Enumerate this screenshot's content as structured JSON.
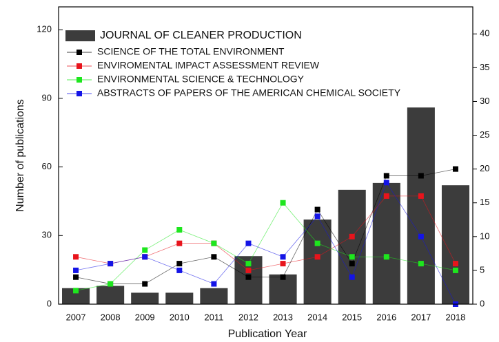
{
  "chart_data": {
    "type": "bar",
    "xlabel": "Publication Year",
    "ylabel": "Number of publications",
    "categories": [
      "2007",
      "2008",
      "2009",
      "2010",
      "2011",
      "2012",
      "2013",
      "2014",
      "2015",
      "2016",
      "2017",
      "2018"
    ],
    "series": [
      {
        "name": "JOURNAL OF CLEANER PRODUCTION",
        "type": "bar",
        "color": "#3c3c3c",
        "values": [
          7,
          8,
          5,
          5,
          7,
          21,
          13,
          37,
          50,
          53,
          86,
          52
        ]
      },
      {
        "name": "SCIENCE OF THE TOTAL ENVIRONMENT",
        "type": "line",
        "axis": "y2",
        "color": "#000000",
        "values": [
          4,
          3,
          3,
          6,
          7,
          4,
          4,
          14,
          6,
          19,
          19,
          20
        ]
      },
      {
        "name": "ENVIROMENTAL IMPACT ASSESSMENT REVIEW",
        "type": "line",
        "axis": "y2",
        "color": "#e8141c",
        "values": [
          7,
          6,
          7,
          9,
          9,
          5,
          6,
          7,
          10,
          16,
          16,
          6
        ]
      },
      {
        "name": "ENVIRONMENTAL SCIENCE & TECHNOLOGY",
        "type": "line",
        "axis": "y2",
        "color": "#1ee61e",
        "values": [
          2,
          3,
          8,
          11,
          9,
          6,
          15,
          9,
          7,
          7,
          6,
          5
        ]
      },
      {
        "name": "ABSTRACTS OF PAPERS OF THE AMERICAN CHEMICAL SOCIETY",
        "type": "line",
        "axis": "y2",
        "color": "#1414e6",
        "values": [
          5,
          6,
          7,
          5,
          3,
          9,
          7,
          13,
          4,
          18,
          10,
          0
        ]
      }
    ],
    "ylim": [
      0,
      130
    ],
    "yticks": [
      0,
      30,
      60,
      90,
      120
    ],
    "y2lim": [
      0,
      44
    ],
    "y2ticks": [
      0,
      5,
      10,
      15,
      20,
      25,
      30,
      35,
      40
    ],
    "legend": "upper left",
    "grid": false
  }
}
